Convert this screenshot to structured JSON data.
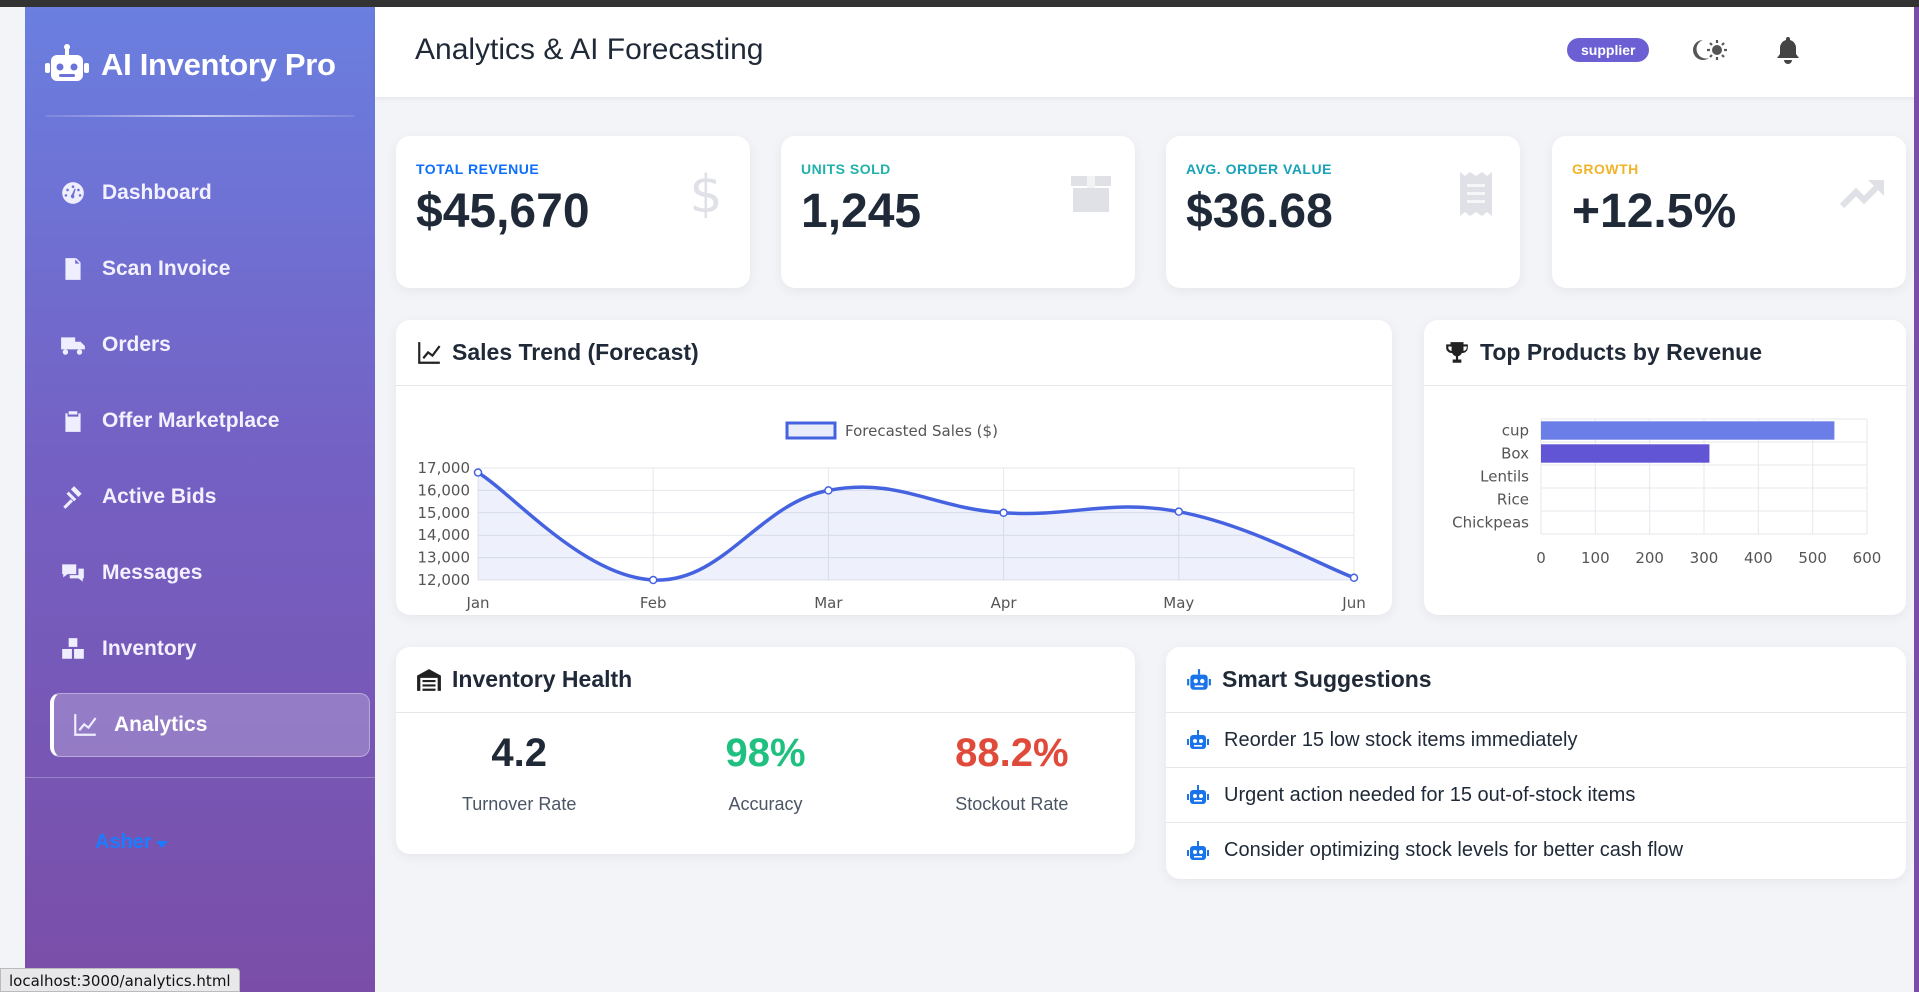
{
  "browser": {
    "status_url": "localhost:3000/analytics.html"
  },
  "sidebar": {
    "brand": "AI Inventory Pro",
    "items": [
      {
        "label": "Dashboard",
        "icon": "gauge-icon"
      },
      {
        "label": "Scan Invoice",
        "icon": "invoice-icon"
      },
      {
        "label": "Orders",
        "icon": "truck-icon"
      },
      {
        "label": "Offer Marketplace",
        "icon": "clipboard-icon"
      },
      {
        "label": "Active Bids",
        "icon": "gavel-icon"
      },
      {
        "label": "Messages",
        "icon": "chat-icon"
      },
      {
        "label": "Inventory",
        "icon": "boxes-icon"
      },
      {
        "label": "Analytics",
        "icon": "chart-line-icon",
        "active": true
      }
    ],
    "user": "Asher"
  },
  "header": {
    "title": "Analytics & AI Forecasting",
    "role_badge": "supplier"
  },
  "kpis": [
    {
      "label": "TOTAL REVENUE",
      "value": "$45,670",
      "color": "#0d6efd",
      "icon": "dollar-icon"
    },
    {
      "label": "UNITS SOLD",
      "value": "1,245",
      "color": "#20b2aa",
      "icon": "box-icon"
    },
    {
      "label": "AVG. ORDER VALUE",
      "value": "$36.68",
      "color": "#17a2b8",
      "icon": "receipt-icon"
    },
    {
      "label": "GROWTH",
      "value": "+12.5%",
      "color": "#f0b429",
      "icon": "trend-up-icon"
    }
  ],
  "sales_trend": {
    "title": "Sales Trend (Forecast)"
  },
  "top_products": {
    "title": "Top Products by Revenue"
  },
  "inventory_health": {
    "title": "Inventory Health",
    "stats": [
      {
        "value": "4.2",
        "label": "Turnover Rate",
        "color": "#1f2937"
      },
      {
        "value": "98%",
        "label": "Accuracy",
        "color": "#20c080"
      },
      {
        "value": "88.2%",
        "label": "Stockout Rate",
        "color": "#e04a3a"
      }
    ]
  },
  "suggestions": {
    "title": "Smart Suggestions",
    "items": [
      "Reorder 15 low stock items immediately",
      "Urgent action needed for 15 out-of-stock items",
      "Consider optimizing stock levels for better cash flow"
    ]
  },
  "chart_data": [
    {
      "type": "area",
      "title": "",
      "x": [
        "Jan",
        "Feb",
        "Mar",
        "Apr",
        "May",
        "Jun"
      ],
      "series": [
        {
          "name": "Forecasted Sales ($)",
          "values": [
            16800,
            12000,
            16000,
            15000,
            15050,
            12100
          ]
        }
      ],
      "ylim": [
        12000,
        17000
      ],
      "yticks": [
        "12,000",
        "13,000",
        "14,000",
        "15,000",
        "16,000",
        "17,000"
      ],
      "legend": "top",
      "grid": true,
      "color": "#4563e0"
    },
    {
      "type": "bar",
      "orientation": "horizontal",
      "categories": [
        "cup",
        "Box",
        "Lentils",
        "Rice",
        "Chickpeas"
      ],
      "values": [
        540,
        310,
        0,
        0,
        0
      ],
      "xlim": [
        0,
        600
      ],
      "xticks": [
        "0",
        "100",
        "200",
        "300",
        "400",
        "500",
        "600"
      ],
      "grid": true,
      "colors": [
        "#6b7ee8",
        "#6155d6"
      ]
    }
  ]
}
